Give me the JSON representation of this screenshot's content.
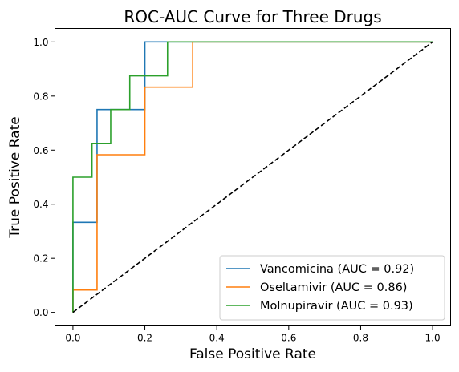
{
  "chart_data": {
    "type": "line",
    "title": "ROC-AUC Curve for Three Drugs",
    "xlabel": "False Positive Rate",
    "ylabel": "True Positive Rate",
    "xlim": [
      -0.05,
      1.05
    ],
    "ylim": [
      -0.05,
      1.05
    ],
    "xticks": [
      "0.0",
      "0.2",
      "0.4",
      "0.6",
      "0.8",
      "1.0"
    ],
    "yticks": [
      "0.0",
      "0.2",
      "0.4",
      "0.6",
      "0.8",
      "1.0"
    ],
    "grid": false,
    "legend_position": "lower-right",
    "diagonal": {
      "points": [
        [
          0,
          0
        ],
        [
          1,
          1
        ]
      ],
      "color": "#000000",
      "style": "dashed"
    },
    "series": [
      {
        "name": "Vancomicina (AUC = 0.92)",
        "color": "#1f77b4",
        "points": [
          [
            0,
            0
          ],
          [
            0,
            0.333
          ],
          [
            0.067,
            0.333
          ],
          [
            0.067,
            0.75
          ],
          [
            0.2,
            0.75
          ],
          [
            0.2,
            1.0
          ],
          [
            1.0,
            1.0
          ]
        ]
      },
      {
        "name": "Oseltamivir (AUC = 0.86)",
        "color": "#ff7f0e",
        "points": [
          [
            0,
            0
          ],
          [
            0,
            0.083
          ],
          [
            0.067,
            0.083
          ],
          [
            0.067,
            0.583
          ],
          [
            0.2,
            0.583
          ],
          [
            0.2,
            0.833
          ],
          [
            0.333,
            0.833
          ],
          [
            0.333,
            1.0
          ],
          [
            1.0,
            1.0
          ]
        ]
      },
      {
        "name": "Molnupiravir (AUC = 0.93)",
        "color": "#2ca02c",
        "points": [
          [
            0,
            0
          ],
          [
            0,
            0.5
          ],
          [
            0.053,
            0.5
          ],
          [
            0.053,
            0.625
          ],
          [
            0.105,
            0.625
          ],
          [
            0.105,
            0.75
          ],
          [
            0.158,
            0.75
          ],
          [
            0.158,
            0.875
          ],
          [
            0.263,
            0.875
          ],
          [
            0.263,
            1.0
          ],
          [
            1.0,
            1.0
          ]
        ]
      }
    ]
  }
}
